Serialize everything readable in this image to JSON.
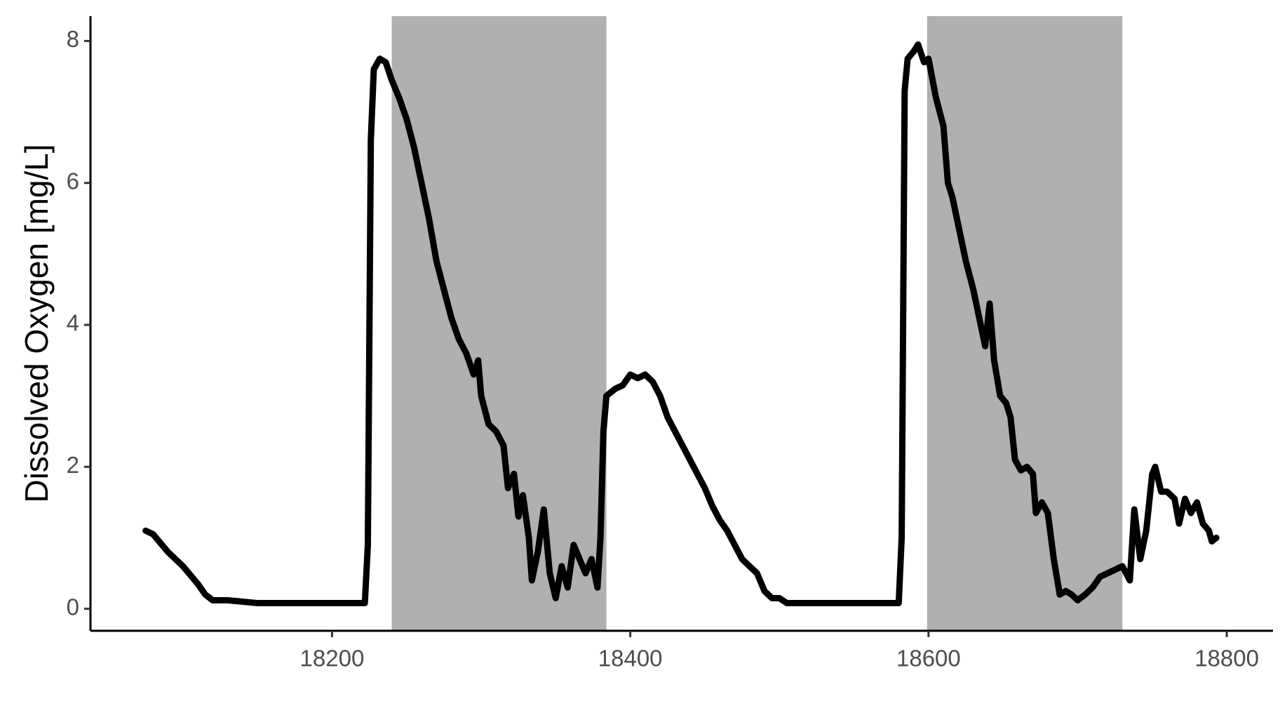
{
  "chart_data": {
    "type": "line",
    "y_label": "Dissolved Oxygen [mg/L]",
    "shaded_regions": [
      [
        18240,
        18384
      ],
      [
        18599,
        18730
      ]
    ],
    "shade_color": "#b0b0b0",
    "xlim": [
      18038,
      18831
    ],
    "ylim": [
      -0.31,
      8.35
    ],
    "xticks": [
      18200,
      18400,
      18600,
      18800
    ],
    "yticks": [
      0,
      2,
      4,
      6,
      8
    ],
    "grid": false,
    "series": [
      {
        "color": "#000000",
        "x": [
          18075,
          18080,
          18090,
          18100,
          18110,
          18115,
          18120,
          18130,
          18140,
          18150,
          18222,
          18224,
          18226,
          18228,
          18232,
          18236,
          18240,
          18245,
          18250,
          18255,
          18260,
          18265,
          18270,
          18275,
          18280,
          18285,
          18290,
          18295,
          18298,
          18300,
          18305,
          18310,
          18315,
          18318,
          18322,
          18325,
          18328,
          18332,
          18334,
          18338,
          18342,
          18346,
          18350,
          18354,
          18358,
          18362,
          18366,
          18370,
          18374,
          18378,
          18380,
          18382,
          18384,
          18390,
          18395,
          18400,
          18405,
          18410,
          18415,
          18420,
          18425,
          18430,
          18435,
          18440,
          18445,
          18450,
          18455,
          18460,
          18465,
          18470,
          18475,
          18480,
          18485,
          18490,
          18495,
          18500,
          18505,
          18510,
          18580,
          18582,
          18584,
          18586,
          18590,
          18593,
          18597,
          18600,
          18605,
          18610,
          18613,
          18616,
          18620,
          18625,
          18630,
          18635,
          18638,
          18641,
          18644,
          18648,
          18652,
          18655,
          18658,
          18662,
          18666,
          18670,
          18672,
          18676,
          18680,
          18684,
          18688,
          18692,
          18696,
          18700,
          18705,
          18710,
          18715,
          18720,
          18725,
          18730,
          18735,
          18738,
          18742,
          18746,
          18750,
          18752,
          18756,
          18760,
          18765,
          18768,
          18772,
          18776,
          18780,
          18784,
          18788,
          18790,
          18793
        ],
        "values": [
          1.1,
          1.05,
          0.8,
          0.6,
          0.35,
          0.2,
          0.12,
          0.12,
          0.1,
          0.08,
          0.08,
          0.9,
          6.6,
          7.6,
          7.75,
          7.7,
          7.45,
          7.2,
          6.9,
          6.5,
          6.0,
          5.5,
          4.9,
          4.5,
          4.1,
          3.8,
          3.6,
          3.3,
          3.5,
          3.0,
          2.6,
          2.5,
          2.3,
          1.7,
          1.9,
          1.3,
          1.6,
          1.0,
          0.4,
          0.8,
          1.4,
          0.5,
          0.15,
          0.6,
          0.3,
          0.9,
          0.7,
          0.5,
          0.7,
          0.3,
          1.0,
          2.5,
          3.0,
          3.1,
          3.15,
          3.3,
          3.25,
          3.3,
          3.2,
          3.0,
          2.7,
          2.5,
          2.3,
          2.1,
          1.9,
          1.7,
          1.45,
          1.25,
          1.1,
          0.9,
          0.7,
          0.6,
          0.5,
          0.25,
          0.15,
          0.15,
          0.08,
          0.08,
          0.08,
          1.0,
          7.3,
          7.75,
          7.85,
          7.95,
          7.7,
          7.75,
          7.2,
          6.8,
          6.0,
          5.8,
          5.4,
          4.9,
          4.5,
          4.0,
          3.7,
          4.3,
          3.5,
          3.0,
          2.9,
          2.7,
          2.1,
          1.95,
          2.0,
          1.9,
          1.35,
          1.5,
          1.35,
          0.7,
          0.2,
          0.25,
          0.2,
          0.12,
          0.2,
          0.3,
          0.45,
          0.5,
          0.55,
          0.6,
          0.4,
          1.4,
          0.7,
          1.1,
          1.9,
          2.0,
          1.65,
          1.65,
          1.55,
          1.2,
          1.55,
          1.35,
          1.5,
          1.2,
          1.1,
          0.95,
          1.0
        ]
      }
    ]
  }
}
